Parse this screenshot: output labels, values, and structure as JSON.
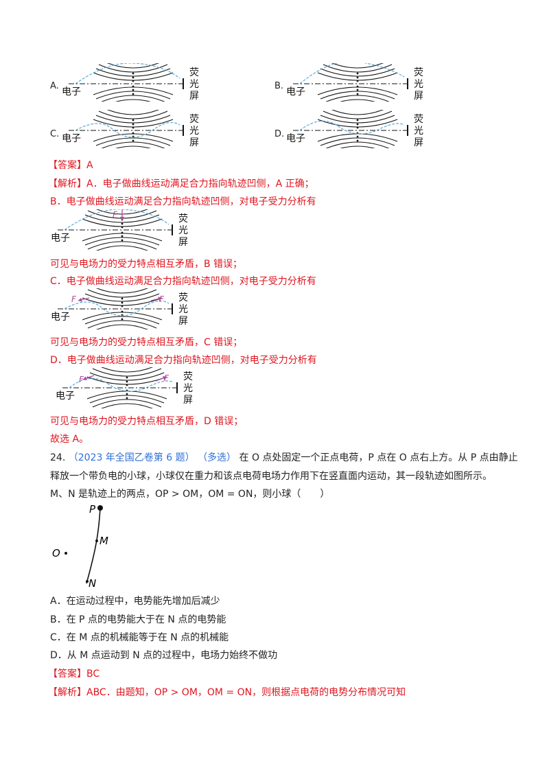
{
  "figure_labels": {
    "electron": "电子",
    "screen_chars": [
      "荧",
      "光",
      "屏"
    ],
    "force": "F"
  },
  "options_fig": {
    "a": "A.",
    "b": "B.",
    "c": "C.",
    "d": "D."
  },
  "q23": {
    "answer_label": "【答案】",
    "answer_value": "A",
    "analysis_label": "【解析】",
    "analysis_a": "A．电子做曲线运动满足合力指向轨迹凹侧，A 正确；",
    "analysis_b": "B．电子做曲线运动满足合力指向轨迹凹侧，对电子受力分析有",
    "conclusion_b": "可见与电场力的受力特点相互矛盾，B 错误；",
    "analysis_c": "C．电子做曲线运动满足合力指向轨迹凹侧，对电子受力分析有",
    "conclusion_c": "可见与电场力的受力特点相互矛盾，C 错误；",
    "analysis_d": "D．电子做曲线运动满足合力指向轨迹凹侧，对电子受力分析有",
    "conclusion_d": "可见与电场力的受力特点相互矛盾，D 错误；",
    "final": "故选 A。"
  },
  "q24": {
    "number": "24.",
    "source": "（2023 年全国乙卷第 6 题）",
    "tag": "（多选）",
    "stem_line1": "在 O 点处固定一个正点电荷，P 点在 O 点右上方。从 P 点由静止",
    "stem_line2": "释放一个带负电的小球，小球仅在重力和该点电荷电场力作用下在竖直面内运动，其一段轨迹如图所示。",
    "stem_line3": "M、N 是轨迹上的两点，OP > OM，OM = ON，则小球（　　）",
    "fig_labels": {
      "p": "P",
      "m": "M",
      "o": "O",
      "n": "N"
    },
    "options": [
      "A．在运动过程中，电势能先增加后减少",
      "B．在 P 点的电势能大于在 N 点的电势能",
      "C．在 M 点的机械能等于在 N 点的机械能",
      "D．从 M 点运动到 N 点的过程中，电场力始终不做功"
    ],
    "answer_label": "【答案】",
    "answer_value": "BC",
    "analysis_label": "【解析】",
    "analysis": "ABC．由题知，OP > OM，OM = ON，则根据点电荷的电势分布情况可知"
  }
}
